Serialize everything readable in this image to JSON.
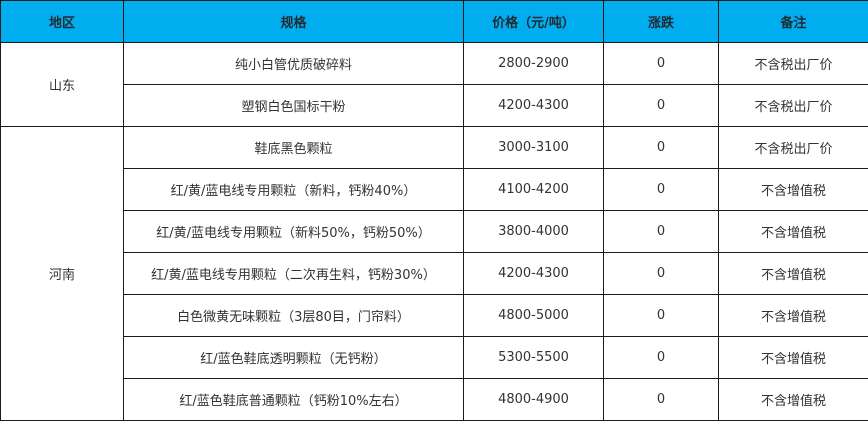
{
  "header": {
    "region": "地区",
    "spec": "规格",
    "price": "价格（元/吨）",
    "change": "涨跌",
    "note": "备注"
  },
  "groups": [
    {
      "region": "山东",
      "rows": [
        {
          "spec": "纯小白管优质破碎料",
          "price": "2800-2900",
          "change": "0",
          "note": "不含税出厂价"
        },
        {
          "spec": "塑钢白色国标干粉",
          "price": "4200-4300",
          "change": "0",
          "note": "不含税出厂价"
        }
      ]
    },
    {
      "region": "河南",
      "rows": [
        {
          "spec": "鞋底黑色颗粒",
          "price": "3000-3100",
          "change": "0",
          "note": "不含税出厂价"
        },
        {
          "spec": "红/黄/蓝电线专用颗粒（新料，钙粉40%）",
          "price": "4100-4200",
          "change": "0",
          "note": "不含增值税"
        },
        {
          "spec": "红/黄/蓝电线专用颗粒（新料50%，钙粉50%）",
          "price": "3800-4000",
          "change": "0",
          "note": "不含增值税"
        },
        {
          "spec": "红/黄/蓝电线专用颗粒（二次再生料，钙粉30%）",
          "price": "4200-4300",
          "change": "0",
          "note": "不含增值税"
        },
        {
          "spec": "白色微黄无味颗粒（3层80目，门帘料）",
          "price": "4800-5000",
          "change": "0",
          "note": "不含增值税"
        },
        {
          "spec": "红/蓝色鞋底透明颗粒（无钙粉）",
          "price": "5300-5500",
          "change": "0",
          "note": "不含增值税"
        },
        {
          "spec": "红/蓝色鞋底普通颗粒（钙粉10%左右）",
          "price": "4800-4900",
          "change": "0",
          "note": "不含增值税"
        }
      ]
    }
  ],
  "colors": {
    "header_bg": "#00aeef"
  }
}
